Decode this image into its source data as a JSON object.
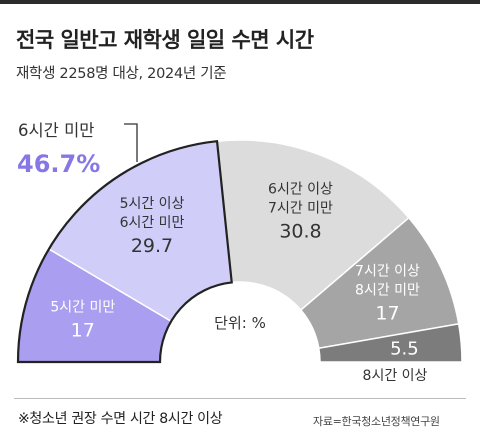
{
  "header": {
    "title": "전국 일반고 재학생 일일 수면 시간",
    "subtitle": "재학생 2258명 대상, 2024년 기준"
  },
  "chart_data": {
    "type": "pie",
    "shape": "half-donut",
    "unit_label": "단위: %",
    "categories": [
      "5시간 미만",
      "5시간 이상 6시간 미만",
      "6시간 이상 7시간 미만",
      "7시간 이상 8시간 미만",
      "8시간 이상"
    ],
    "slices": [
      {
        "label_lines": [
          "5시간 미만"
        ],
        "value": 17,
        "value_text": "17",
        "color": "#a99ef0",
        "text_color": "#ffffff"
      },
      {
        "label_lines": [
          "5시간 이상",
          "6시간 미만"
        ],
        "value": 29.7,
        "value_text": "29.7",
        "color": "#d0cdf9",
        "text_color": "#333333"
      },
      {
        "label_lines": [
          "6시간 이상",
          "7시간 미만"
        ],
        "value": 30.8,
        "value_text": "30.8",
        "color": "#dcdcdc",
        "text_color": "#333333"
      },
      {
        "label_lines": [
          "7시간 이상",
          "8시간 미만"
        ],
        "value": 17,
        "value_text": "17",
        "color": "#a5a5a5",
        "text_color": "#ffffff"
      },
      {
        "label_lines": [
          "8시간 이상"
        ],
        "value": 5.5,
        "value_text": "5.5",
        "color": "#7c7c7c",
        "text_color": "#ffffff"
      }
    ],
    "highlight": {
      "label": "6시간 미만",
      "value_text": "46.7%",
      "color": "#8676e6",
      "slices": [
        0,
        1
      ]
    }
  },
  "footer": {
    "footnote": "※청소년 권장 수면 시간 8시간 이상",
    "source": "자료=한국청소년정책연구원"
  }
}
